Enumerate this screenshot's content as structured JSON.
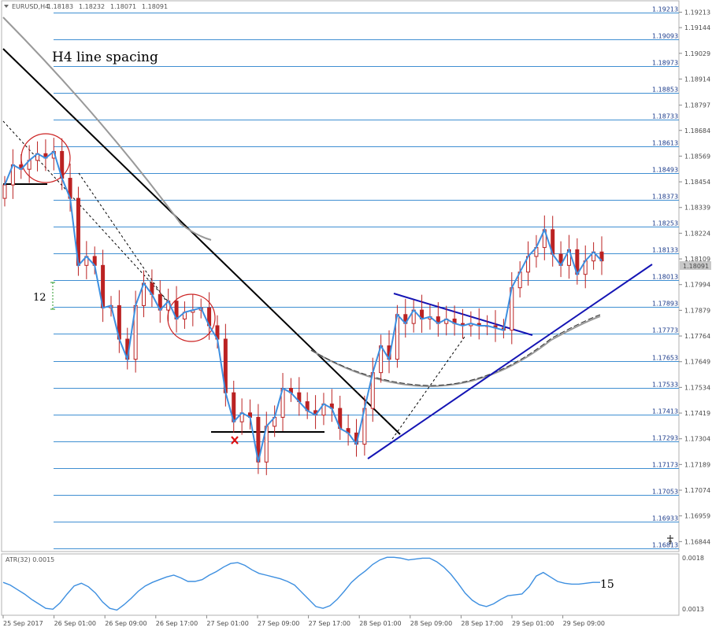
{
  "chart_data": {
    "type": "candlestick",
    "symbol_header": "EURUSD,H4",
    "header_values": [
      "1.18183",
      "1.18232",
      "1.18071",
      "1.18091"
    ],
    "header_menu_icon": "triangle-down-icon",
    "annotation_title": "H4 line spacing",
    "annotation_range_count": "12",
    "annotation_atr_count": "15",
    "current_price": "1.18091",
    "ylim": [
      1.1681,
      1.1925
    ],
    "y_ticks": [
      "1.19213",
      "1.19144",
      "1.19029",
      "1.18914",
      "1.18797",
      "1.18684",
      "1.18569",
      "1.18454",
      "1.18339",
      "1.18224",
      "1.18109",
      "1.17994",
      "1.17879",
      "1.17764",
      "1.17649",
      "1.17534",
      "1.17419",
      "1.17304",
      "1.17189",
      "1.17074",
      "1.16959",
      "1.16844"
    ],
    "levels": [
      "1.19213",
      "1.19093",
      "1.18973",
      "1.18853",
      "1.18733",
      "1.18613",
      "1.18493",
      "1.18373",
      "1.18253",
      "1.18133",
      "1.18013",
      "1.17893",
      "1.17773",
      "1.17653",
      "1.17533",
      "1.17413",
      "1.17293",
      "1.17173",
      "1.17053",
      "1.16933",
      "1.16813"
    ],
    "x_ticks": [
      "25 Sep 2017",
      "26 Sep 01:00",
      "26 Sep 09:00",
      "26 Sep 17:00",
      "27 Sep 01:00",
      "27 Sep 09:00",
      "27 Sep 17:00",
      "28 Sep 01:00",
      "28 Sep 09:00",
      "28 Sep 17:00",
      "29 Sep 01:00",
      "29 Sep 09:00"
    ],
    "atr_label": "ATR(32) 0.0015",
    "atr_ticks": [
      "0.0018",
      "0.0013"
    ],
    "atr_ylim": [
      0.0012,
      0.00185
    ],
    "atr_values": [
      0.00155,
      0.00152,
      0.00147,
      0.00142,
      0.00136,
      0.00131,
      0.00126,
      0.00125,
      0.00132,
      0.00142,
      0.00151,
      0.00154,
      0.0015,
      0.00143,
      0.00133,
      0.00126,
      0.00124,
      0.0013,
      0.00137,
      0.00145,
      0.00151,
      0.00155,
      0.00158,
      0.00161,
      0.00163,
      0.0016,
      0.00156,
      0.00156,
      0.00158,
      0.00163,
      0.00167,
      0.00172,
      0.00176,
      0.00177,
      0.00174,
      0.00169,
      0.00165,
      0.00163,
      0.00161,
      0.00159,
      0.00156,
      0.00152,
      0.00144,
      0.00136,
      0.00128,
      0.00126,
      0.00129,
      0.00136,
      0.00145,
      0.00155,
      0.00162,
      0.00168,
      0.00175,
      0.0018,
      0.00183,
      0.00183,
      0.00182,
      0.0018,
      0.00181,
      0.00182,
      0.00182,
      0.00178,
      0.00172,
      0.00164,
      0.00154,
      0.00143,
      0.00135,
      0.0013,
      0.00128,
      0.00131,
      0.00136,
      0.0014,
      0.00141,
      0.00142,
      0.0015,
      0.00162,
      0.00166,
      0.00161,
      0.00156,
      0.00154,
      0.00153,
      0.00153,
      0.00154,
      0.00155,
      0.00155
    ],
    "close_series": [
      1.1844,
      1.1853,
      1.1851,
      1.1855,
      1.1858,
      1.1856,
      1.1859,
      1.1847,
      1.1838,
      1.1808,
      1.1812,
      1.1808,
      1.1789,
      1.179,
      1.1775,
      1.1766,
      1.179,
      1.18,
      1.1795,
      1.1788,
      1.1792,
      1.1784,
      1.1787,
      1.1788,
      1.1789,
      1.1781,
      1.1775,
      1.1751,
      1.1738,
      1.1742,
      1.174,
      1.172,
      1.1736,
      1.174,
      1.1753,
      1.1751,
      1.1747,
      1.1743,
      1.1741,
      1.1746,
      1.1744,
      1.1735,
      1.1733,
      1.1728,
      1.1744,
      1.176,
      1.1772,
      1.1766,
      1.1786,
      1.1782,
      1.1788,
      1.1784,
      1.1785,
      1.1782,
      1.1784,
      1.1782,
      1.1781,
      1.1782,
      1.1781,
      1.1781,
      1.178,
      1.1779,
      1.1798,
      1.1805,
      1.1812,
      1.1816,
      1.1824,
      1.1813,
      1.1808,
      1.1815,
      1.1804,
      1.181,
      1.1814,
      1.181
    ]
  }
}
